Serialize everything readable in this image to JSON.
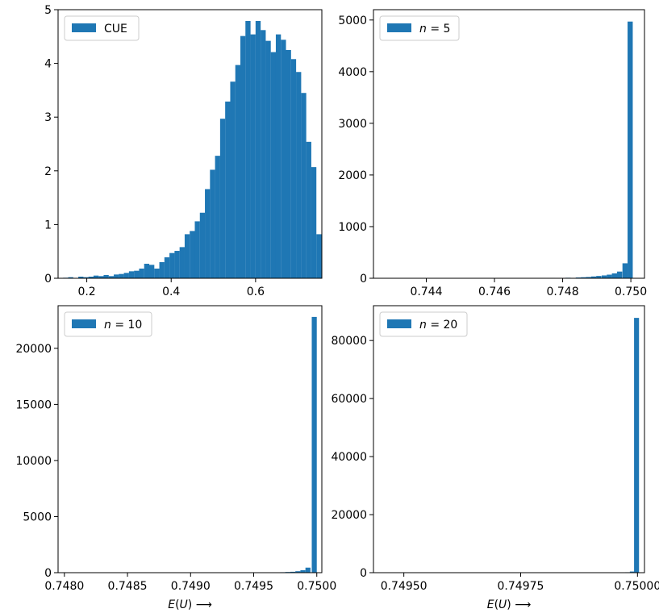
{
  "chart_data": [
    {
      "type": "bar",
      "legend": {
        "label": "CUE",
        "italic_n": false,
        "placement": "upper-left"
      },
      "color": "#1f77b4",
      "xlim": [
        0.132,
        0.757
      ],
      "ylim": [
        0,
        5
      ],
      "bar_width": 0.0121,
      "bars": [
        {
          "x": 0.15,
          "y": 0.01
        },
        {
          "x": 0.162,
          "y": 0.02
        },
        {
          "x": 0.174,
          "y": 0.0
        },
        {
          "x": 0.186,
          "y": 0.03
        },
        {
          "x": 0.198,
          "y": 0.02
        },
        {
          "x": 0.21,
          "y": 0.03
        },
        {
          "x": 0.222,
          "y": 0.05
        },
        {
          "x": 0.234,
          "y": 0.04
        },
        {
          "x": 0.246,
          "y": 0.06
        },
        {
          "x": 0.258,
          "y": 0.04
        },
        {
          "x": 0.27,
          "y": 0.07
        },
        {
          "x": 0.282,
          "y": 0.08
        },
        {
          "x": 0.294,
          "y": 0.1
        },
        {
          "x": 0.306,
          "y": 0.13
        },
        {
          "x": 0.318,
          "y": 0.14
        },
        {
          "x": 0.33,
          "y": 0.18
        },
        {
          "x": 0.342,
          "y": 0.27
        },
        {
          "x": 0.354,
          "y": 0.25
        },
        {
          "x": 0.366,
          "y": 0.18
        },
        {
          "x": 0.378,
          "y": 0.3
        },
        {
          "x": 0.39,
          "y": 0.39
        },
        {
          "x": 0.402,
          "y": 0.47
        },
        {
          "x": 0.414,
          "y": 0.51
        },
        {
          "x": 0.426,
          "y": 0.58
        },
        {
          "x": 0.438,
          "y": 0.82
        },
        {
          "x": 0.45,
          "y": 0.88
        },
        {
          "x": 0.462,
          "y": 1.06
        },
        {
          "x": 0.474,
          "y": 1.22
        },
        {
          "x": 0.486,
          "y": 1.66
        },
        {
          "x": 0.498,
          "y": 2.02
        },
        {
          "x": 0.51,
          "y": 2.28
        },
        {
          "x": 0.522,
          "y": 2.97
        },
        {
          "x": 0.534,
          "y": 3.29
        },
        {
          "x": 0.546,
          "y": 3.66
        },
        {
          "x": 0.558,
          "y": 3.97
        },
        {
          "x": 0.57,
          "y": 4.51
        },
        {
          "x": 0.582,
          "y": 4.79
        },
        {
          "x": 0.594,
          "y": 4.54
        },
        {
          "x": 0.606,
          "y": 4.79
        },
        {
          "x": 0.618,
          "y": 4.62
        },
        {
          "x": 0.63,
          "y": 4.42
        },
        {
          "x": 0.642,
          "y": 4.21
        },
        {
          "x": 0.654,
          "y": 4.54
        },
        {
          "x": 0.666,
          "y": 4.44
        },
        {
          "x": 0.678,
          "y": 4.25
        },
        {
          "x": 0.69,
          "y": 4.08
        },
        {
          "x": 0.702,
          "y": 3.84
        },
        {
          "x": 0.714,
          "y": 3.45
        },
        {
          "x": 0.726,
          "y": 2.54
        },
        {
          "x": 0.738,
          "y": 2.07
        },
        {
          "x": 0.75,
          "y": 0.82
        }
      ],
      "xticks": [
        0.2,
        0.4,
        0.6
      ],
      "xtick_labels": [
        "0.2",
        "0.4",
        "0.6"
      ],
      "yticks": [
        0,
        1,
        2,
        3,
        4,
        5
      ],
      "ytick_labels": [
        "0",
        "1",
        "2",
        "3",
        "4",
        "5"
      ],
      "xlabel": ""
    },
    {
      "type": "bar",
      "legend": {
        "label": "n = 5",
        "italic_n": true,
        "placement": "upper-left"
      },
      "color": "#1f77b4",
      "xlim": [
        0.74245,
        0.7504
      ],
      "ylim": [
        0,
        5200
      ],
      "bar_width": 0.000152,
      "bars": [
        {
          "x": 0.7463,
          "y": 5
        },
        {
          "x": 0.7471,
          "y": 6
        },
        {
          "x": 0.7477,
          "y": 8
        },
        {
          "x": 0.74816,
          "y": 10
        },
        {
          "x": 0.74846,
          "y": 15
        },
        {
          "x": 0.74861,
          "y": 20
        },
        {
          "x": 0.74876,
          "y": 25
        },
        {
          "x": 0.74891,
          "y": 35
        },
        {
          "x": 0.74906,
          "y": 45
        },
        {
          "x": 0.74922,
          "y": 55
        },
        {
          "x": 0.74937,
          "y": 70
        },
        {
          "x": 0.74952,
          "y": 95
        },
        {
          "x": 0.74967,
          "y": 130
        },
        {
          "x": 0.74983,
          "y": 290
        },
        {
          "x": 0.74998,
          "y": 4970
        }
      ],
      "xticks": [
        0.744,
        0.746,
        0.748,
        0.75
      ],
      "xtick_labels": [
        "0.744",
        "0.746",
        "0.748",
        "0.750"
      ],
      "yticks": [
        0,
        1000,
        2000,
        3000,
        4000,
        5000
      ],
      "ytick_labels": [
        "0",
        "1000",
        "2000",
        "3000",
        "4000",
        "5000"
      ],
      "xlabel": ""
    },
    {
      "type": "bar",
      "legend": {
        "label": "n = 10",
        "italic_n": true,
        "placement": "upper-left"
      },
      "color": "#1f77b4",
      "xlim": [
        0.74795,
        0.75004
      ],
      "ylim": [
        0,
        23800
      ],
      "bar_width": 3.98e-05,
      "bars": [
        {
          "x": 0.74937,
          "y": 10
        },
        {
          "x": 0.74961,
          "y": 20
        },
        {
          "x": 0.74969,
          "y": 30
        },
        {
          "x": 0.74973,
          "y": 40
        },
        {
          "x": 0.74977,
          "y": 60
        },
        {
          "x": 0.74981,
          "y": 80
        },
        {
          "x": 0.74985,
          "y": 130
        },
        {
          "x": 0.74989,
          "y": 220
        },
        {
          "x": 0.74993,
          "y": 450
        },
        {
          "x": 0.74998,
          "y": 22800
        }
      ],
      "xticks": [
        0.748,
        0.7485,
        0.749,
        0.7495,
        0.75
      ],
      "xtick_labels": [
        "0.7480",
        "0.7485",
        "0.7490",
        "0.7495",
        "0.7500"
      ],
      "yticks": [
        0,
        5000,
        10000,
        15000,
        20000
      ],
      "ytick_labels": [
        "0",
        "5000",
        "10000",
        "15000",
        "20000"
      ],
      "xlabel": "E(U) ⟶"
    },
    {
      "type": "bar",
      "legend": {
        "label": "n = 20",
        "italic_n": true,
        "placement": "upper-left"
      },
      "color": "#1f77b4",
      "xlim": [
        0.749435,
        0.750015
      ],
      "ylim": [
        0,
        92000
      ],
      "bar_width": 1.06e-05,
      "bars": [
        {
          "x": 0.749915,
          "y": 20
        },
        {
          "x": 0.749957,
          "y": 40
        },
        {
          "x": 0.749968,
          "y": 80
        },
        {
          "x": 0.749979,
          "y": 150
        },
        {
          "x": 0.749989,
          "y": 400
        },
        {
          "x": 0.749998,
          "y": 87800
        }
      ],
      "xticks": [
        0.7495,
        0.74975,
        0.75
      ],
      "xtick_labels": [
        "0.74950",
        "0.74975",
        "0.75000"
      ],
      "yticks": [
        0,
        20000,
        40000,
        60000,
        80000
      ],
      "ytick_labels": [
        "0",
        "20000",
        "40000",
        "60000",
        "80000"
      ],
      "xlabel": "E(U) ⟶"
    }
  ]
}
